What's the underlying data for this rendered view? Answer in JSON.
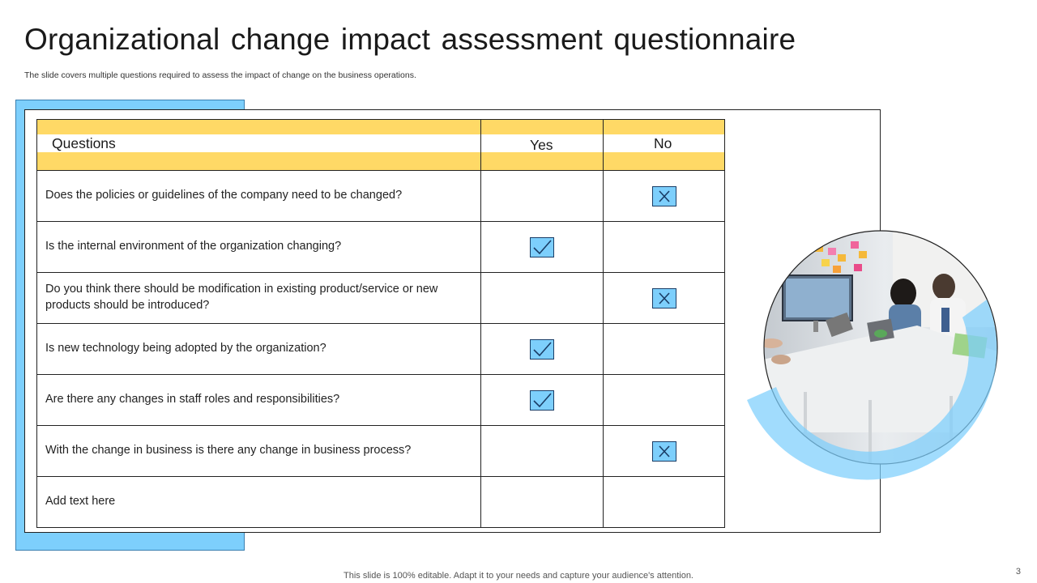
{
  "slide": {
    "title": "Organizational change impact assessment questionnaire",
    "subtitle": "The slide covers multiple questions required to assess the impact of change on the business operations.",
    "footer": "This slide is 100% editable. Adapt it to your needs and capture your audience's attention.",
    "page_number": "3"
  },
  "table": {
    "headers": {
      "question": "Questions",
      "yes": "Yes",
      "no": "No"
    },
    "rows": [
      {
        "question": "Does the policies or guidelines of the company need to be changed?",
        "answer": "no"
      },
      {
        "question": "Is the internal environment of the organization  changing?",
        "answer": "yes"
      },
      {
        "question": "Do you think there should be modification in existing product/service or new products should be introduced?",
        "answer": "no"
      },
      {
        "question": "Is new technology being adopted by the organization?",
        "answer": "yes"
      },
      {
        "question": "Are there any changes in staff roles and responsibilities?",
        "answer": "yes"
      },
      {
        "question": "With the change in business is there any change in business process?",
        "answer": "no"
      },
      {
        "question": "Add text here",
        "answer": ""
      }
    ]
  },
  "icons": {
    "yes_mark": "checkmark-icon",
    "no_mark": "cross-icon"
  },
  "colors": {
    "accent_blue": "#7dcffc",
    "header_yellow": "#ffd966",
    "mark_border": "#1a3d66"
  }
}
